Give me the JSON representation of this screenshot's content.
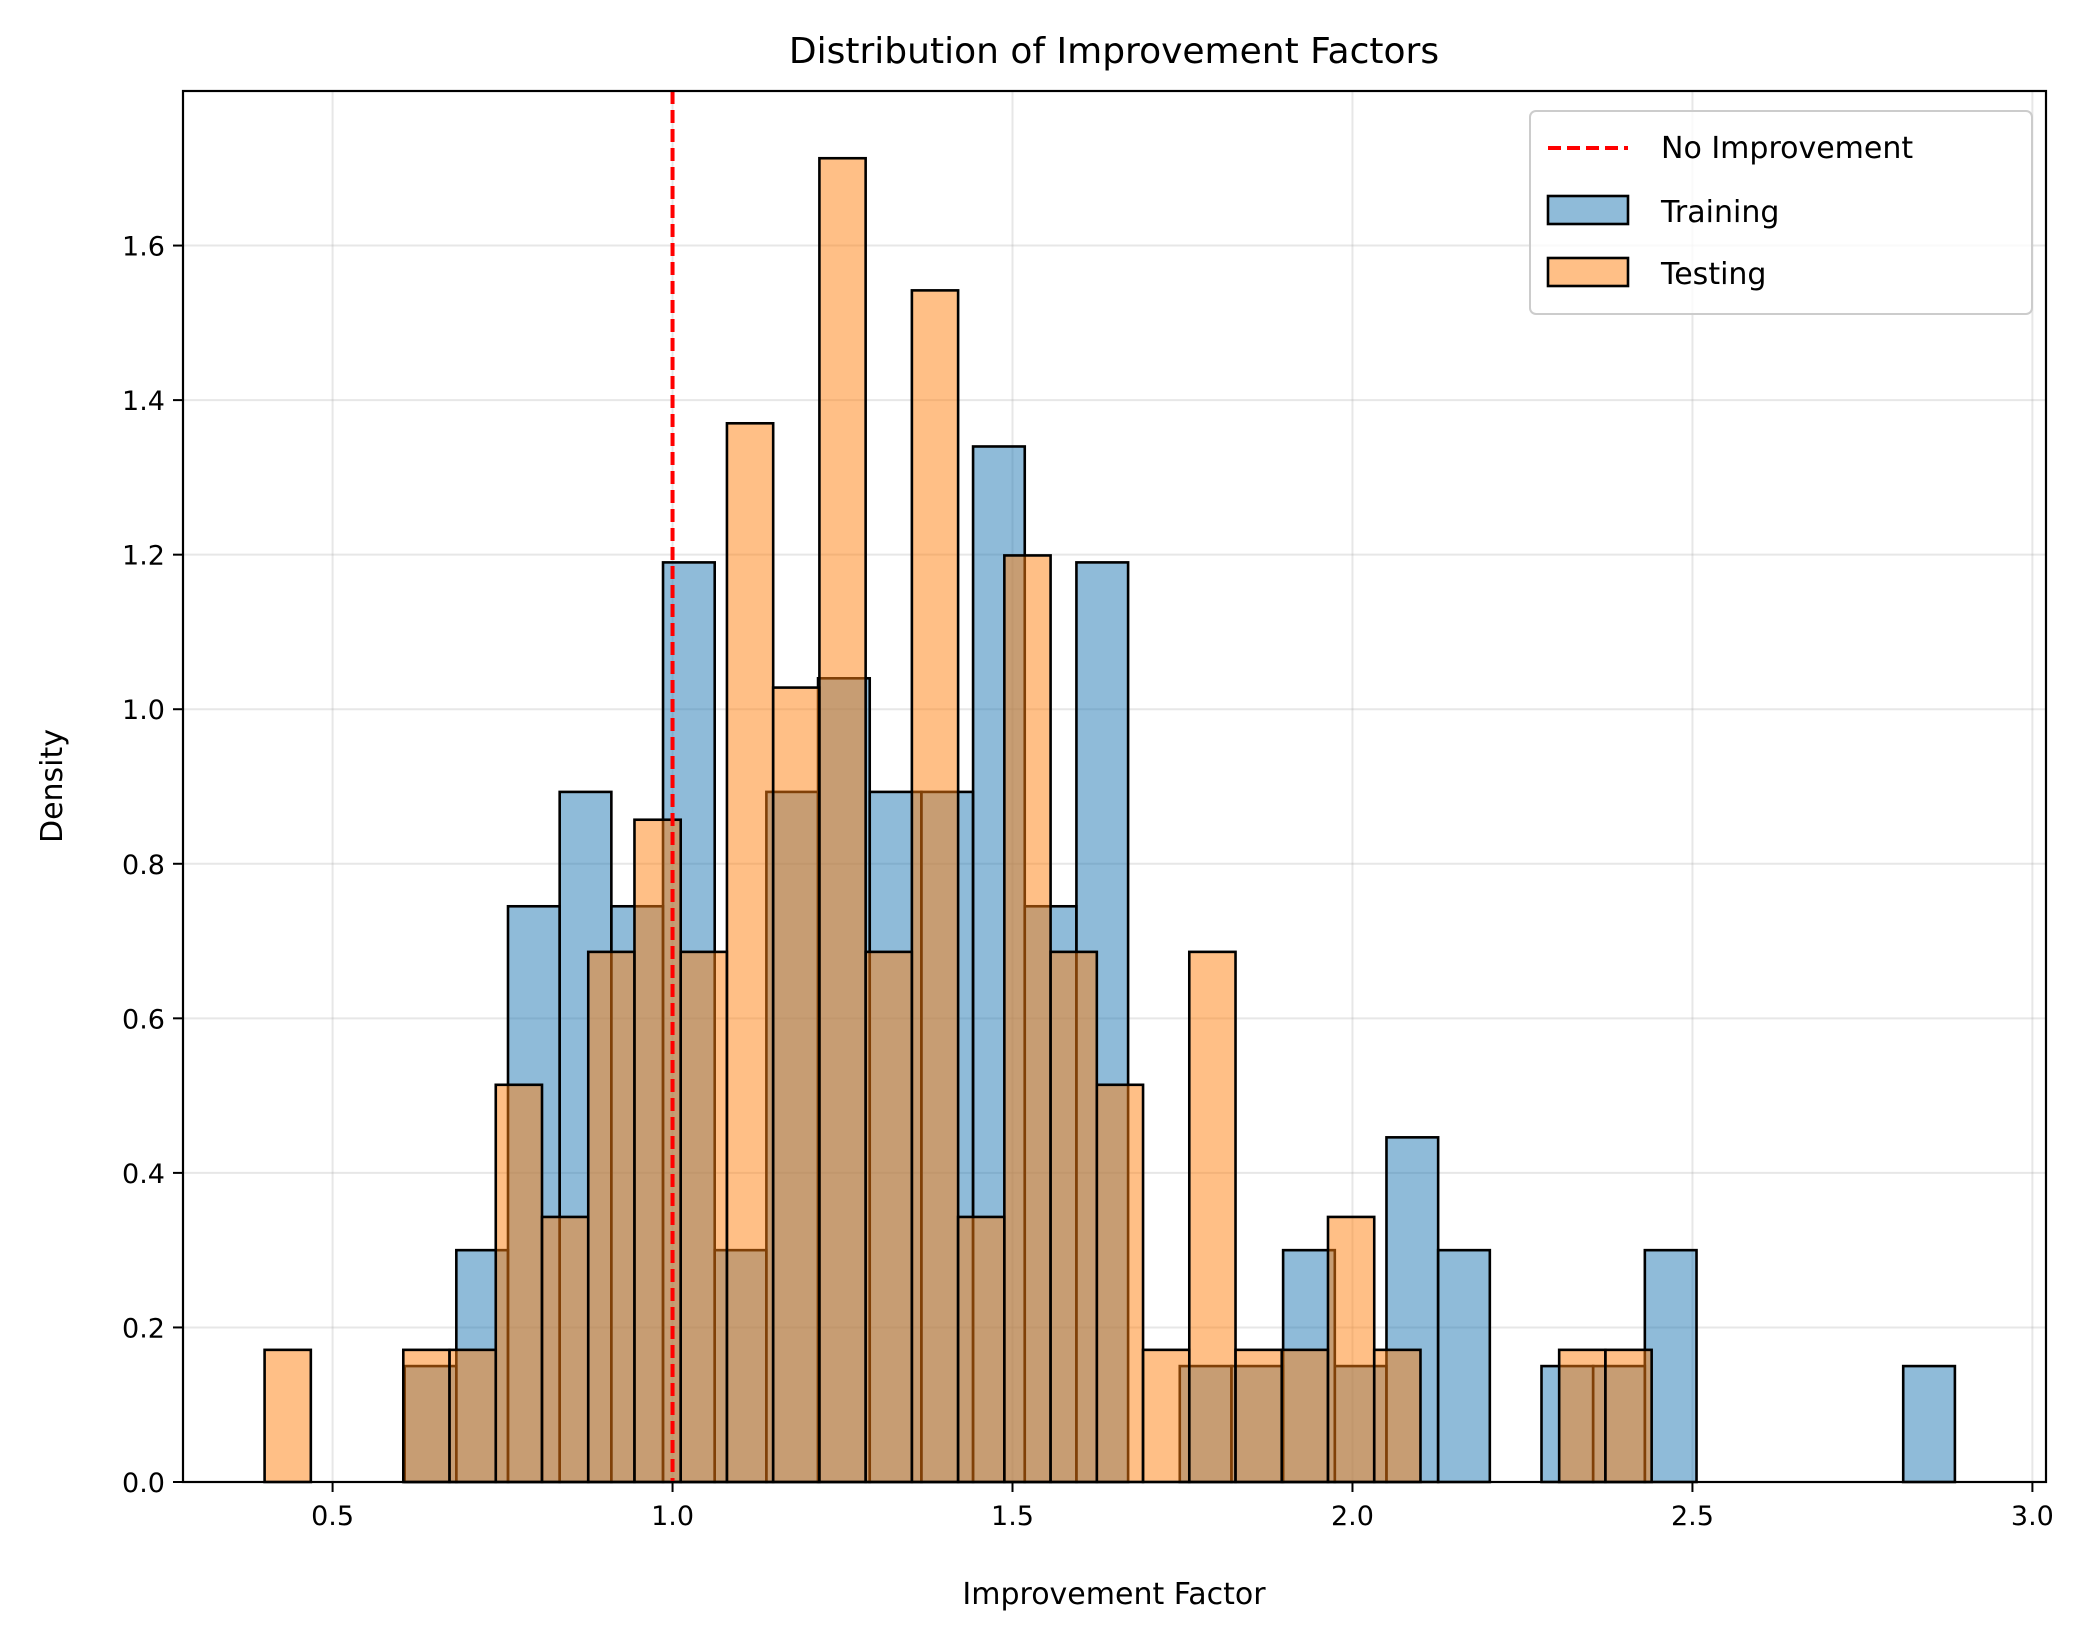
{
  "chart_data": {
    "type": "histogram",
    "title": "Distribution of Improvement Factors",
    "xlabel": "Improvement Factor",
    "ylabel": "Density",
    "xlim": [
      0.28,
      3.02
    ],
    "ylim": [
      0,
      1.8
    ],
    "xticks": [
      0.5,
      1.0,
      1.5,
      2.0,
      2.5,
      3.0
    ],
    "xtick_labels": [
      "0.5",
      "1.0",
      "1.5",
      "2.0",
      "2.5",
      "3.0"
    ],
    "yticks": [
      0.0,
      0.2,
      0.4,
      0.6,
      0.8,
      1.0,
      1.2,
      1.4,
      1.6
    ],
    "ytick_labels": [
      "0.0",
      "0.2",
      "0.4",
      "0.6",
      "0.8",
      "1.0",
      "1.2",
      "1.4",
      "1.6"
    ],
    "grid": true,
    "legend_position": "upper right",
    "reference_line": {
      "name": "No Improvement",
      "x": 1.0,
      "color": "#ff0000",
      "style": "dashed"
    },
    "series": [
      {
        "name": "Training",
        "color": "#1f77b4",
        "bins": [
          [
            0.606,
            0.682,
            0.15
          ],
          [
            0.682,
            0.758,
            0.3
          ],
          [
            0.758,
            0.834,
            0.745
          ],
          [
            0.834,
            0.91,
            0.893
          ],
          [
            0.91,
            0.986,
            0.745
          ],
          [
            0.986,
            1.062,
            1.19
          ],
          [
            1.062,
            1.138,
            0.3
          ],
          [
            1.138,
            1.214,
            0.893
          ],
          [
            1.214,
            1.29,
            1.04
          ],
          [
            1.29,
            1.366,
            0.893
          ],
          [
            1.366,
            1.442,
            0.893
          ],
          [
            1.442,
            1.518,
            1.34
          ],
          [
            1.518,
            1.594,
            0.745
          ],
          [
            1.594,
            1.67,
            1.19
          ],
          [
            1.67,
            1.746,
            0.0
          ],
          [
            1.746,
            1.822,
            0.15
          ],
          [
            1.822,
            1.898,
            0.15
          ],
          [
            1.898,
            1.974,
            0.3
          ],
          [
            1.974,
            2.05,
            0.15
          ],
          [
            2.05,
            2.126,
            0.446
          ],
          [
            2.126,
            2.202,
            0.3
          ],
          [
            2.202,
            2.278,
            0.0
          ],
          [
            2.278,
            2.354,
            0.15
          ],
          [
            2.354,
            2.43,
            0.15
          ],
          [
            2.43,
            2.506,
            0.3
          ],
          [
            2.506,
            2.582,
            0.0
          ],
          [
            2.582,
            2.658,
            0.0
          ],
          [
            2.658,
            2.734,
            0.0
          ],
          [
            2.734,
            2.81,
            0.0
          ],
          [
            2.81,
            2.886,
            0.15
          ]
        ]
      },
      {
        "name": "Testing",
        "color": "#ff7f0e",
        "bins": [
          [
            0.4,
            0.468,
            0.171
          ],
          [
            0.468,
            0.536,
            0.0
          ],
          [
            0.536,
            0.604,
            0.0
          ],
          [
            0.604,
            0.672,
            0.171
          ],
          [
            0.672,
            0.74,
            0.171
          ],
          [
            0.74,
            0.808,
            0.514
          ],
          [
            0.808,
            0.876,
            0.343
          ],
          [
            0.876,
            0.944,
            0.686
          ],
          [
            0.944,
            1.012,
            0.857
          ],
          [
            1.012,
            1.08,
            0.686
          ],
          [
            1.08,
            1.148,
            1.37
          ],
          [
            1.148,
            1.216,
            1.028
          ],
          [
            1.216,
            1.284,
            1.713
          ],
          [
            1.284,
            1.352,
            0.686
          ],
          [
            1.352,
            1.42,
            1.542
          ],
          [
            1.42,
            1.488,
            0.343
          ],
          [
            1.488,
            1.556,
            1.199
          ],
          [
            1.556,
            1.624,
            0.686
          ],
          [
            1.624,
            1.692,
            0.514
          ],
          [
            1.692,
            1.76,
            0.171
          ],
          [
            1.76,
            1.828,
            0.686
          ],
          [
            1.828,
            1.896,
            0.171
          ],
          [
            1.896,
            1.964,
            0.171
          ],
          [
            1.964,
            2.032,
            0.343
          ],
          [
            2.032,
            2.1,
            0.171
          ],
          [
            2.1,
            2.168,
            0.0
          ],
          [
            2.168,
            2.236,
            0.0
          ],
          [
            2.236,
            2.304,
            0.0
          ],
          [
            2.304,
            2.372,
            0.171
          ],
          [
            2.372,
            2.44,
            0.171
          ]
        ]
      }
    ]
  }
}
